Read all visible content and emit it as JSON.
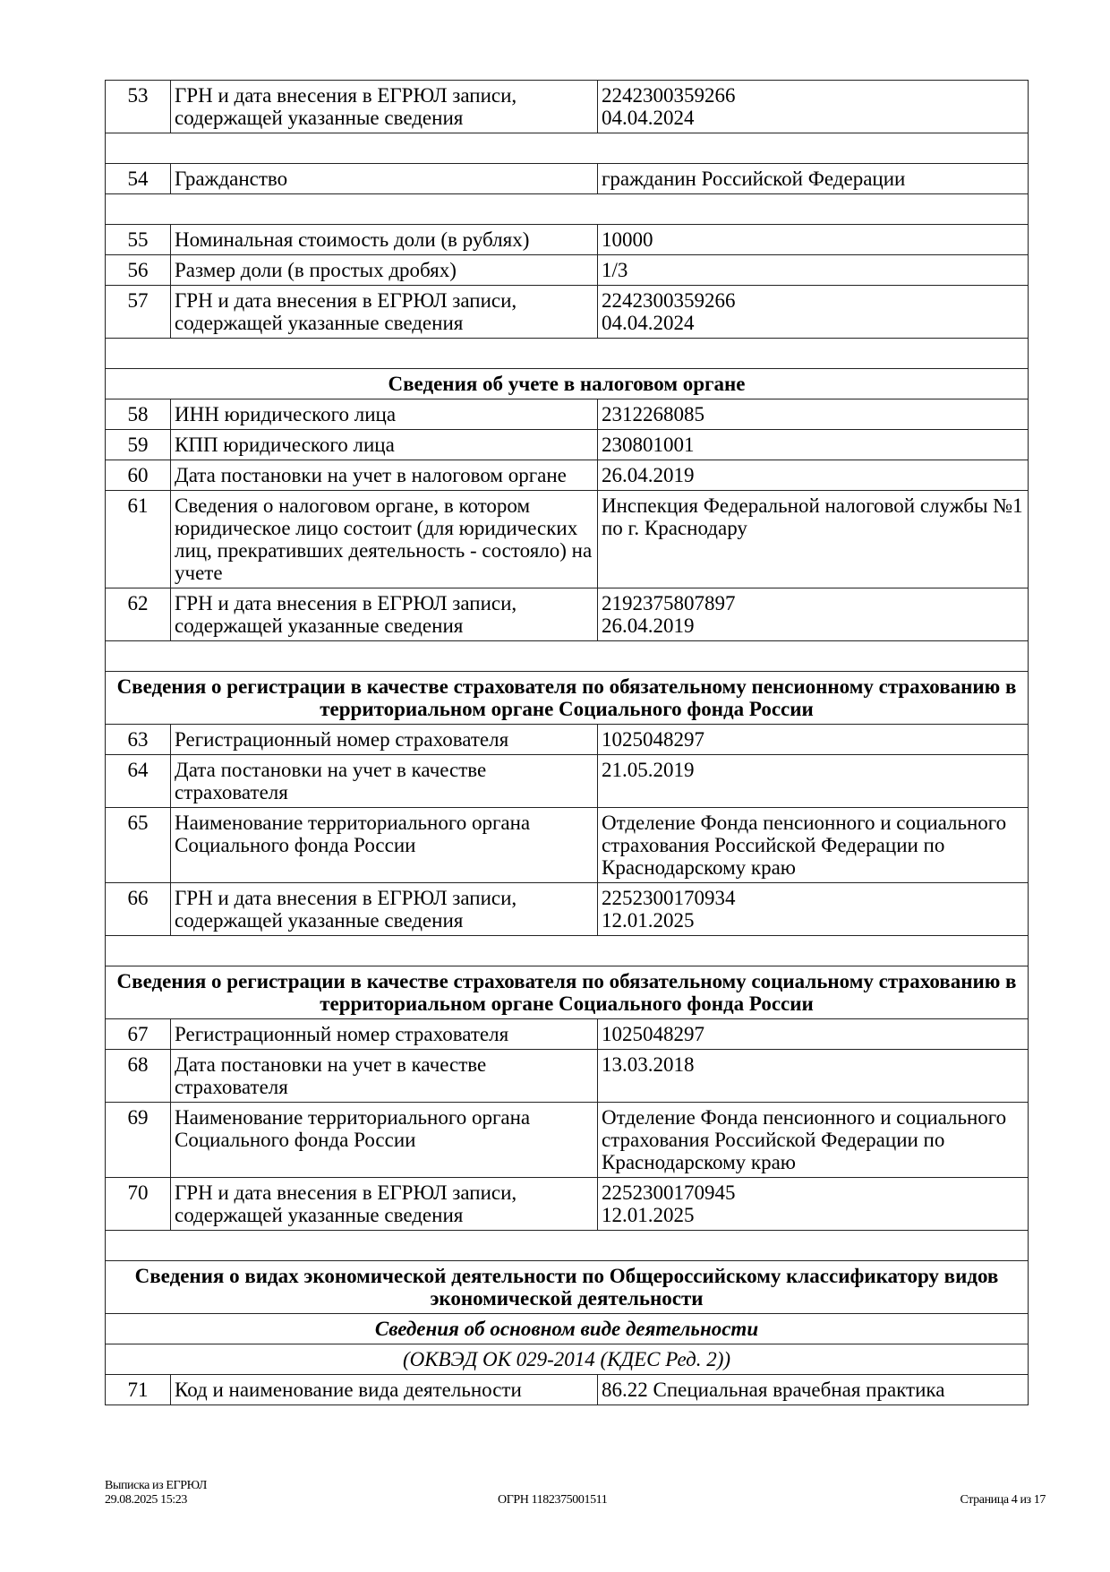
{
  "rows": [
    {
      "type": "row",
      "num": "53",
      "label": "ГРН и дата внесения в ЕГРЮЛ записи, содержащей указанные сведения",
      "value": "2242300359266\n04.04.2024"
    },
    {
      "type": "blank"
    },
    {
      "type": "row",
      "num": "54",
      "label": "Гражданство",
      "value": "гражданин Российской Федерации"
    },
    {
      "type": "blank"
    },
    {
      "type": "row",
      "num": "55",
      "label": "Номинальная стоимость доли (в рублях)",
      "value": "10000"
    },
    {
      "type": "row",
      "num": "56",
      "label": "Размер доли (в простых дробях)",
      "value": "1/3"
    },
    {
      "type": "row",
      "num": "57",
      "label": "ГРН и дата внесения в ЕГРЮЛ записи, содержащей указанные сведения",
      "value": "2242300359266\n04.04.2024"
    },
    {
      "type": "blank"
    },
    {
      "type": "section",
      "text": "Сведения об учете в налоговом органе"
    },
    {
      "type": "row",
      "num": "58",
      "label": "ИНН юридического лица",
      "value": "2312268085"
    },
    {
      "type": "row",
      "num": "59",
      "label": "КПП юридического лица",
      "value": "230801001"
    },
    {
      "type": "row",
      "num": "60",
      "label": "Дата постановки на учет в налоговом органе",
      "value": "26.04.2019"
    },
    {
      "type": "row",
      "num": "61",
      "label": "Сведения о налоговом органе, в котором юридическое лицо состоит (для юридических лиц, прекративших деятельность - состояло) на учете",
      "value": "Инспекция Федеральной налоговой службы №1 по г. Краснодару"
    },
    {
      "type": "row",
      "num": "62",
      "label": "ГРН и дата внесения в ЕГРЮЛ записи, содержащей указанные сведения",
      "value": "2192375807897\n26.04.2019"
    },
    {
      "type": "blank"
    },
    {
      "type": "section",
      "text": "Сведения о регистрации в качестве страхователя по обязательному пенсионному страхованию в территориальном органе Социального фонда России"
    },
    {
      "type": "row",
      "num": "63",
      "label": "Регистрационный номер страхователя",
      "value": "1025048297"
    },
    {
      "type": "row",
      "num": "64",
      "label": "Дата постановки на учет в качестве страхователя",
      "value": "21.05.2019"
    },
    {
      "type": "row",
      "num": "65",
      "label": "Наименование территориального органа Социального фонда России",
      "value": "Отделение Фонда пенсионного и социального страхования Российской Федерации по Краснодарскому краю"
    },
    {
      "type": "row",
      "num": "66",
      "label": "ГРН и дата внесения в ЕГРЮЛ записи, содержащей указанные сведения",
      "value": "2252300170934\n12.01.2025"
    },
    {
      "type": "blank"
    },
    {
      "type": "section",
      "text": "Сведения о регистрации в качестве страхователя по обязательному социальному страхованию в территориальном органе Социального фонда России"
    },
    {
      "type": "row",
      "num": "67",
      "label": "Регистрационный номер страхователя",
      "value": "1025048297"
    },
    {
      "type": "row",
      "num": "68",
      "label": "Дата постановки на учет в качестве страхователя",
      "value": "13.03.2018"
    },
    {
      "type": "row",
      "num": "69",
      "label": "Наименование территориального органа Социального фонда России",
      "value": "Отделение Фонда пенсионного и социального страхования Российской Федерации по Краснодарскому краю"
    },
    {
      "type": "row",
      "num": "70",
      "label": "ГРН и дата внесения в ЕГРЮЛ записи, содержащей указанные сведения",
      "value": "2252300170945\n12.01.2025"
    },
    {
      "type": "blank"
    },
    {
      "type": "section",
      "text": "Сведения о видах экономической деятельности по Общероссийскому классификатору видов экономической деятельности"
    },
    {
      "type": "sub",
      "text": "Сведения об основном виде деятельности"
    },
    {
      "type": "sub2",
      "text": "(ОКВЭД ОК 029-2014 (КДЕС Ред. 2))"
    },
    {
      "type": "row",
      "num": "71",
      "label": "Код и наименование вида деятельности",
      "value": "86.22 Специальная врачебная практика"
    }
  ],
  "footer": {
    "doc_name": "Выписка из ЕГРЮЛ",
    "datetime": "29.08.2025 15:23",
    "ogrn": "ОГРН 1182375001511",
    "page": "Страница 4 из 17"
  }
}
